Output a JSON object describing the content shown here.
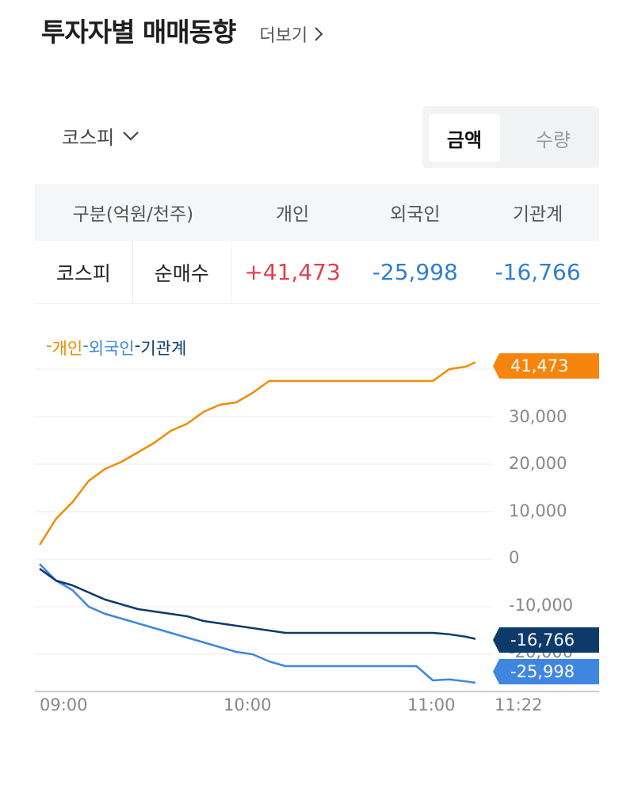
{
  "header": {
    "title": "투자자별 매매동향",
    "more_label": "더보기"
  },
  "market_select": {
    "selected": "코스피"
  },
  "toggle": {
    "options": [
      {
        "label": "금액",
        "active": true
      },
      {
        "label": "수량",
        "active": false
      }
    ]
  },
  "table": {
    "headers": [
      "구분(억원/천주)",
      "개인",
      "외국인",
      "기관계"
    ],
    "row": {
      "market": "코스피",
      "type": "순매수",
      "individual": "+41,473",
      "foreign": "-25,998",
      "institution": "-16,766"
    }
  },
  "colors": {
    "individual": "#f08c00",
    "foreign": "#3f86e0",
    "institution": "#0c3a6b",
    "positive_text": "#e1404f",
    "negative_text": "#2f7fcd"
  },
  "legend": [
    {
      "dash": "-",
      "label": "개인"
    },
    {
      "dash": "-",
      "label": "외국인"
    },
    {
      "dash": "-",
      "label": "기관계"
    }
  ],
  "tags": {
    "individual": "41,473",
    "institution": "-16,766",
    "foreign": "-25,998"
  },
  "chart_data": {
    "type": "line",
    "title": "",
    "xlabel": "",
    "ylabel": "",
    "x_ticks": [
      "09:00",
      "10:00",
      "11:00",
      "11:22"
    ],
    "y_ticks": [
      "30,000",
      "20,000",
      "10,000",
      "0",
      "-10,000",
      "-20,000"
    ],
    "ylim": [
      -28000,
      42000
    ],
    "legend_position": "top-left",
    "grid": true,
    "x": [
      "09:00",
      "09:05",
      "09:10",
      "09:15",
      "09:20",
      "09:25",
      "09:30",
      "09:35",
      "09:40",
      "09:45",
      "09:50",
      "09:55",
      "10:00",
      "10:05",
      "10:10",
      "10:15",
      "10:20",
      "10:25",
      "10:30",
      "10:35",
      "10:40",
      "10:45",
      "10:50",
      "10:55",
      "11:00",
      "11:05",
      "11:10",
      "11:13"
    ],
    "series": [
      {
        "name": "개인",
        "values": [
          3000,
          8500,
          12000,
          16500,
          19000,
          20500,
          22500,
          24500,
          27000,
          28500,
          31000,
          32500,
          33000,
          35000,
          37500,
          37500,
          37500,
          37500,
          37500,
          37500,
          37500,
          37500,
          37500,
          37500,
          37500,
          40000,
          40500,
          41473
        ]
      },
      {
        "name": "외국인",
        "values": [
          -1000,
          -4500,
          -6500,
          -10000,
          -11500,
          -12500,
          -13500,
          -14500,
          -15500,
          -16500,
          -17500,
          -18500,
          -19500,
          -20000,
          -21500,
          -22500,
          -22500,
          -22500,
          -22500,
          -22500,
          -22500,
          -22500,
          -22500,
          -22500,
          -25500,
          -25300,
          -25700,
          -25998
        ]
      },
      {
        "name": "기관계",
        "values": [
          -2000,
          -4500,
          -5500,
          -7000,
          -8500,
          -9500,
          -10500,
          -11000,
          -11500,
          -12000,
          -13000,
          -13500,
          -14000,
          -14500,
          -15000,
          -15500,
          -15500,
          -15500,
          -15500,
          -15500,
          -15500,
          -15500,
          -15500,
          -15500,
          -15500,
          -15800,
          -16300,
          -16766
        ]
      }
    ]
  }
}
